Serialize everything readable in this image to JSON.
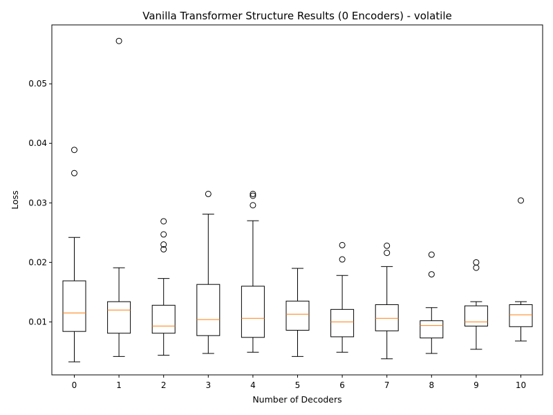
{
  "chart_data": {
    "type": "boxplot",
    "title": "Vanilla Transformer Structure Results (0 Encoders) - volatile",
    "xlabel": "Number of Decoders",
    "ylabel": "Loss",
    "ylim": [
      0.0011,
      0.0599
    ],
    "yticks": [
      0.01,
      0.02,
      0.03,
      0.04,
      0.05
    ],
    "ytick_labels": [
      "0.01",
      "0.02",
      "0.03",
      "0.04",
      "0.05"
    ],
    "categories": [
      "0",
      "1",
      "2",
      "3",
      "4",
      "5",
      "6",
      "7",
      "8",
      "9",
      "10"
    ],
    "grid": false,
    "colors": {
      "box": "#000000",
      "median": "#ff7f0e",
      "outlier": "#000000"
    },
    "boxes": [
      {
        "category": "0",
        "whisker_low": 0.0033,
        "q1": 0.0084,
        "median": 0.0115,
        "q3": 0.0169,
        "whisker_high": 0.0242,
        "outliers": [
          0.035,
          0.0389
        ]
      },
      {
        "category": "1",
        "whisker_low": 0.0042,
        "q1": 0.0081,
        "median": 0.012,
        "q3": 0.0134,
        "whisker_high": 0.0191,
        "outliers": [
          0.0572
        ]
      },
      {
        "category": "2",
        "whisker_low": 0.0044,
        "q1": 0.0081,
        "median": 0.0093,
        "q3": 0.0128,
        "whisker_high": 0.0173,
        "outliers": [
          0.0222,
          0.023,
          0.0247,
          0.0269
        ]
      },
      {
        "category": "3",
        "whisker_low": 0.0047,
        "q1": 0.0077,
        "median": 0.0104,
        "q3": 0.0163,
        "whisker_high": 0.0281,
        "outliers": [
          0.0315
        ]
      },
      {
        "category": "4",
        "whisker_low": 0.0049,
        "q1": 0.0074,
        "median": 0.0106,
        "q3": 0.016,
        "whisker_high": 0.027,
        "outliers": [
          0.0296,
          0.0312,
          0.0315
        ]
      },
      {
        "category": "5",
        "whisker_low": 0.0042,
        "q1": 0.0086,
        "median": 0.0113,
        "q3": 0.0135,
        "whisker_high": 0.019,
        "outliers": []
      },
      {
        "category": "6",
        "whisker_low": 0.0049,
        "q1": 0.0075,
        "median": 0.01,
        "q3": 0.0121,
        "whisker_high": 0.0178,
        "outliers": [
          0.0205,
          0.0229
        ]
      },
      {
        "category": "7",
        "whisker_low": 0.0038,
        "q1": 0.0085,
        "median": 0.0106,
        "q3": 0.0129,
        "whisker_high": 0.0193,
        "outliers": [
          0.0216,
          0.0228
        ]
      },
      {
        "category": "8",
        "whisker_low": 0.0047,
        "q1": 0.0073,
        "median": 0.0094,
        "q3": 0.0102,
        "whisker_high": 0.0124,
        "outliers": [
          0.018,
          0.0213
        ]
      },
      {
        "category": "9",
        "whisker_low": 0.0054,
        "q1": 0.0093,
        "median": 0.01,
        "q3": 0.0127,
        "whisker_high": 0.0134,
        "outliers": [
          0.0191,
          0.02
        ]
      },
      {
        "category": "10",
        "whisker_low": 0.0068,
        "q1": 0.0092,
        "median": 0.0112,
        "q3": 0.0129,
        "whisker_high": 0.0134,
        "outliers": [
          0.0304
        ]
      }
    ]
  }
}
